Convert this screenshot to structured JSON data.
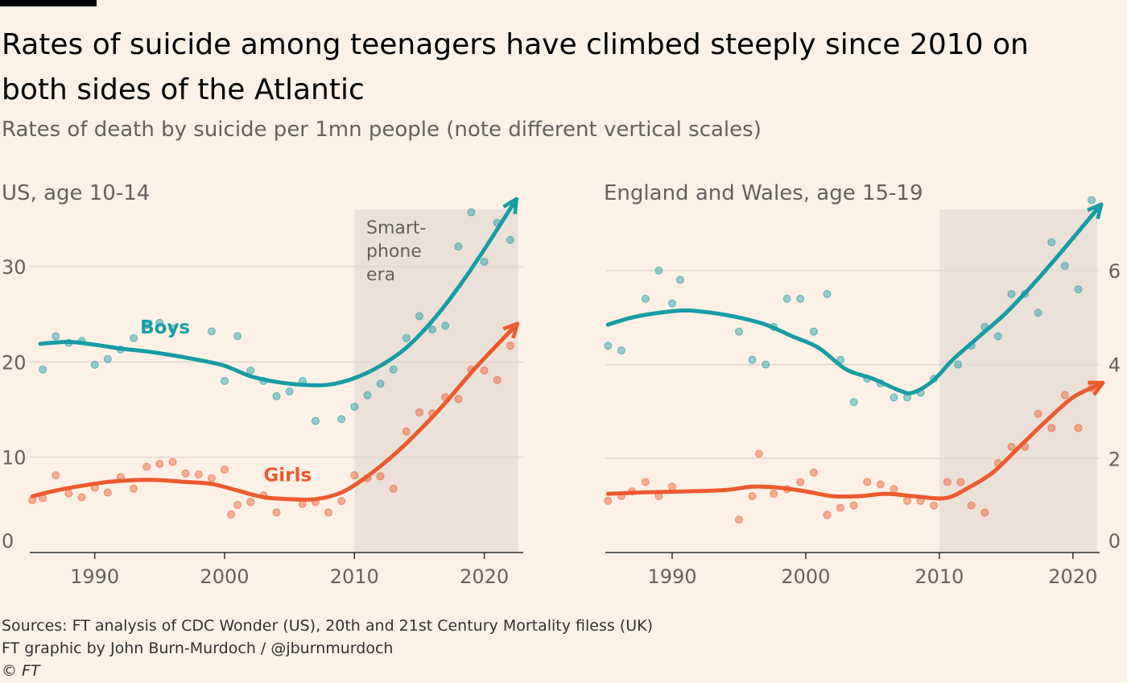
{
  "title": "Rates of suicide among teenagers have climbed steeply since 2010 on both sides of the Atlantic",
  "subtitle": "Rates of death by suicide per 1mn people (note different vertical scales)",
  "colors": {
    "boys": "#169ca6",
    "girls": "#eb5a2e",
    "shade": "#ebe1d8",
    "grid": "#e4d8ce",
    "axis": "#33302e"
  },
  "chart_data": [
    {
      "type": "scatter",
      "title": "US, age 10-14",
      "xlim": [
        1985,
        2023
      ],
      "ylim": [
        0,
        36
      ],
      "x_ticks": [
        1990,
        2000,
        2010,
        2020
      ],
      "y_ticks": [
        0,
        10,
        20,
        30
      ],
      "y_axis_side": "left",
      "shaded_region": {
        "from": 2010,
        "to": 2022.6,
        "label": [
          "Smart-",
          "phone",
          "era"
        ]
      },
      "series": [
        {
          "name": "Boys",
          "points": [
            [
              1986,
              19.2
            ],
            [
              1987,
              22.7
            ],
            [
              1988,
              22
            ],
            [
              1989,
              22.2
            ],
            [
              1990,
              19.7
            ],
            [
              1991,
              20.3
            ],
            [
              1992,
              21.3
            ],
            [
              1993,
              22.5
            ],
            [
              1994,
              23.9
            ],
            [
              1995,
              24.1
            ],
            [
              1996,
              23.5
            ],
            [
              1999,
              23.2
            ],
            [
              2000,
              18
            ],
            [
              2001,
              22.7
            ],
            [
              2002,
              19.1
            ],
            [
              2003,
              18
            ],
            [
              2004,
              16.4
            ],
            [
              2005,
              16.9
            ],
            [
              2006,
              18
            ],
            [
              2007,
              13.8
            ],
            [
              2009,
              14
            ],
            [
              2010,
              15.3
            ],
            [
              2011,
              16.5
            ],
            [
              2012,
              17.7
            ],
            [
              2013,
              19.2
            ],
            [
              2014,
              22.5
            ],
            [
              2015,
              24.8
            ],
            [
              2016,
              23.4
            ],
            [
              2017,
              23.8
            ],
            [
              2018,
              32.1
            ],
            [
              2019,
              35.7
            ],
            [
              2020,
              30.5
            ],
            [
              2021,
              34.6
            ],
            [
              2022,
              32.8
            ]
          ],
          "trend": [
            [
              1985.8,
              21.9
            ],
            [
              1988,
              22.1
            ],
            [
              1990,
              21.8
            ],
            [
              1992,
              21.4
            ],
            [
              1994,
              21.1
            ],
            [
              1996,
              20.7
            ],
            [
              1998,
              20.2
            ],
            [
              2000,
              19.6
            ],
            [
              2002,
              18.5
            ],
            [
              2004,
              17.9
            ],
            [
              2006,
              17.6
            ],
            [
              2008,
              17.6
            ],
            [
              2010,
              18.3
            ],
            [
              2012,
              19.6
            ],
            [
              2014,
              21.5
            ],
            [
              2016,
              24.3
            ],
            [
              2018,
              27.8
            ],
            [
              2020,
              31.8
            ],
            [
              2022.2,
              36.5
            ]
          ]
        },
        {
          "name": "Girls",
          "points": [
            [
              1985.2,
              5.5
            ],
            [
              1986,
              5.7
            ],
            [
              1987,
              8.1
            ],
            [
              1988,
              6.2
            ],
            [
              1989,
              5.8
            ],
            [
              1990,
              6.8
            ],
            [
              1991,
              6.3
            ],
            [
              1992,
              7.9
            ],
            [
              1993,
              6.7
            ],
            [
              1994,
              9
            ],
            [
              1995,
              9.3
            ],
            [
              1996,
              9.5
            ],
            [
              1997,
              8.3
            ],
            [
              1998,
              8.2
            ],
            [
              1999,
              7.8
            ],
            [
              2000,
              8.7
            ],
            [
              2000.5,
              4
            ],
            [
              2001,
              5
            ],
            [
              2002,
              5.3
            ],
            [
              2003,
              6
            ],
            [
              2004,
              4.2
            ],
            [
              2006,
              5.1
            ],
            [
              2007,
              5.3
            ],
            [
              2008,
              4.2
            ],
            [
              2009,
              5.4
            ],
            [
              2010,
              8.1
            ],
            [
              2011,
              7.8
            ],
            [
              2012,
              8
            ],
            [
              2013,
              6.7
            ],
            [
              2014,
              12.7
            ],
            [
              2015,
              14.7
            ],
            [
              2016,
              14.6
            ],
            [
              2017,
              16.3
            ],
            [
              2018,
              16.1
            ],
            [
              2019,
              19.2
            ],
            [
              2020,
              19.1
            ],
            [
              2021,
              18.1
            ],
            [
              2022,
              21.7
            ]
          ],
          "trend": [
            [
              1985.2,
              5.9
            ],
            [
              1987,
              6.5
            ],
            [
              1989,
              7
            ],
            [
              1991,
              7.4
            ],
            [
              1993,
              7.6
            ],
            [
              1995,
              7.6
            ],
            [
              1997,
              7.4
            ],
            [
              1999,
              7.2
            ],
            [
              2001,
              6.5
            ],
            [
              2003,
              5.8
            ],
            [
              2005,
              5.6
            ],
            [
              2007,
              5.6
            ],
            [
              2009,
              6.3
            ],
            [
              2011,
              8
            ],
            [
              2013,
              10.2
            ],
            [
              2015,
              12.8
            ],
            [
              2017,
              15.7
            ],
            [
              2019,
              18.9
            ],
            [
              2021,
              21.8
            ],
            [
              2022.2,
              23.5
            ]
          ]
        }
      ],
      "series_labels": [
        {
          "series": "Boys",
          "text": "Boys",
          "x": 1993.5,
          "y": 23
        },
        {
          "series": "Girls",
          "text": "Girls",
          "x": 2003,
          "y": 7.5
        }
      ]
    },
    {
      "type": "scatter",
      "title": "England and Wales, age 15-19",
      "xlim": [
        1985,
        2022
      ],
      "ylim": [
        0,
        7.3
      ],
      "x_ticks": [
        1990,
        2000,
        2010,
        2020
      ],
      "y_ticks": [
        0,
        2,
        4,
        6
      ],
      "y_axis_side": "right",
      "shaded_region": {
        "from": 2010,
        "to": 2021.8,
        "label": []
      },
      "series": [
        {
          "name": "Boys",
          "points": [
            [
              1985.2,
              4.4
            ],
            [
              1986.2,
              4.3
            ],
            [
              1988,
              5.4
            ],
            [
              1989,
              6
            ],
            [
              1990,
              5.3
            ],
            [
              1990.6,
              5.8
            ],
            [
              1995,
              4.7
            ],
            [
              1996,
              4.1
            ],
            [
              1997,
              4
            ],
            [
              1997.6,
              4.8
            ],
            [
              1998.6,
              5.4
            ],
            [
              1999.6,
              5.4
            ],
            [
              2000.6,
              4.7
            ],
            [
              2001.6,
              5.5
            ],
            [
              2002.6,
              4.1
            ],
            [
              2003.6,
              3.2
            ],
            [
              2004.6,
              3.7
            ],
            [
              2005.6,
              3.6
            ],
            [
              2006.6,
              3.3
            ],
            [
              2007.6,
              3.3
            ],
            [
              2008.6,
              3.4
            ],
            [
              2009.6,
              3.7
            ],
            [
              2011.4,
              4
            ],
            [
              2012.4,
              4.4
            ],
            [
              2013.4,
              4.8
            ],
            [
              2014.4,
              4.6
            ],
            [
              2015.4,
              5.5
            ],
            [
              2016.4,
              5.5
            ],
            [
              2017.4,
              5.1
            ],
            [
              2018.4,
              6.6
            ],
            [
              2019.4,
              6.1
            ],
            [
              2020.4,
              5.6
            ],
            [
              2021.4,
              7.5
            ]
          ],
          "trend": [
            [
              1985.2,
              4.85
            ],
            [
              1987,
              5
            ],
            [
              1989,
              5.1
            ],
            [
              1991,
              5.15
            ],
            [
              1993,
              5.1
            ],
            [
              1995,
              5
            ],
            [
              1997,
              4.85
            ],
            [
              1999,
              4.6
            ],
            [
              2001,
              4.35
            ],
            [
              2003,
              3.9
            ],
            [
              2005,
              3.7
            ],
            [
              2007,
              3.45
            ],
            [
              2008,
              3.4
            ],
            [
              2009.5,
              3.65
            ],
            [
              2011,
              4.1
            ],
            [
              2013,
              4.6
            ],
            [
              2015,
              5.1
            ],
            [
              2017,
              5.7
            ],
            [
              2019,
              6.35
            ],
            [
              2021.8,
              7.3
            ]
          ]
        },
        {
          "name": "Girls",
          "points": [
            [
              1985.2,
              1.1
            ],
            [
              1986.2,
              1.2
            ],
            [
              1987,
              1.3
            ],
            [
              1988,
              1.5
            ],
            [
              1989,
              1.2
            ],
            [
              1990,
              1.4
            ],
            [
              1995,
              0.7
            ],
            [
              1996,
              1.2
            ],
            [
              1996.5,
              2.1
            ],
            [
              1997.6,
              1.25
            ],
            [
              1998.6,
              1.35
            ],
            [
              1999.6,
              1.5
            ],
            [
              2000.6,
              1.7
            ],
            [
              2001.6,
              0.8
            ],
            [
              2002.6,
              0.95
            ],
            [
              2003.6,
              1
            ],
            [
              2004.6,
              1.5
            ],
            [
              2005.6,
              1.45
            ],
            [
              2006.6,
              1.35
            ],
            [
              2007.6,
              1.1
            ],
            [
              2008.6,
              1.1
            ],
            [
              2009.6,
              1
            ],
            [
              2010.6,
              1.5
            ],
            [
              2011.6,
              1.5
            ],
            [
              2012.4,
              1
            ],
            [
              2013.4,
              0.85
            ],
            [
              2014.4,
              1.9
            ],
            [
              2015.4,
              2.25
            ],
            [
              2016.4,
              2.25
            ],
            [
              2017.4,
              2.95
            ],
            [
              2018.4,
              2.65
            ],
            [
              2019.4,
              3.35
            ],
            [
              2020.4,
              2.65
            ],
            [
              2021.4,
              3.5
            ]
          ],
          "trend": [
            [
              1985.2,
              1.25
            ],
            [
              1988,
              1.28
            ],
            [
              1991,
              1.3
            ],
            [
              1994,
              1.33
            ],
            [
              1996,
              1.4
            ],
            [
              1998,
              1.38
            ],
            [
              2000,
              1.3
            ],
            [
              2002,
              1.2
            ],
            [
              2004,
              1.2
            ],
            [
              2006,
              1.25
            ],
            [
              2008,
              1.2
            ],
            [
              2010,
              1.15
            ],
            [
              2011,
              1.2
            ],
            [
              2012,
              1.35
            ],
            [
              2014,
              1.7
            ],
            [
              2016,
              2.25
            ],
            [
              2018,
              2.8
            ],
            [
              2020,
              3.3
            ],
            [
              2021.8,
              3.55
            ]
          ]
        }
      ],
      "series_labels": []
    }
  ],
  "sources": {
    "line1": "Sources: FT analysis of CDC Wonder (US), 20th and 21st Century Mortality filess (UK)",
    "line2": "FT graphic by John Burn-Murdoch / @jburnmurdoch",
    "copyright": "© FT"
  }
}
